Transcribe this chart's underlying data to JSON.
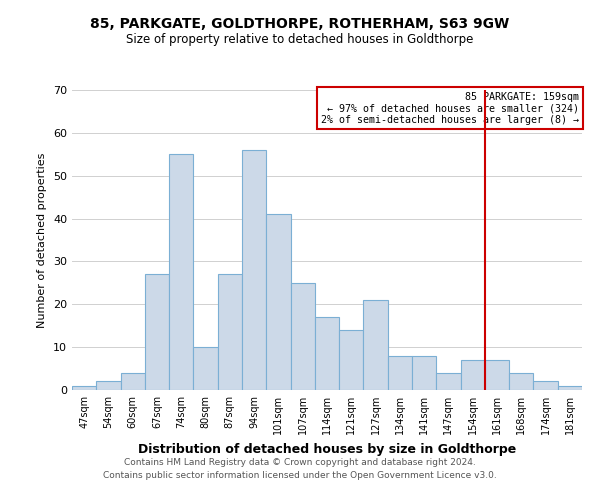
{
  "title": "85, PARKGATE, GOLDTHORPE, ROTHERHAM, S63 9GW",
  "subtitle": "Size of property relative to detached houses in Goldthorpe",
  "xlabel": "Distribution of detached houses by size in Goldthorpe",
  "ylabel": "Number of detached properties",
  "bar_labels": [
    "47sqm",
    "54sqm",
    "60sqm",
    "67sqm",
    "74sqm",
    "80sqm",
    "87sqm",
    "94sqm",
    "101sqm",
    "107sqm",
    "114sqm",
    "121sqm",
    "127sqm",
    "134sqm",
    "141sqm",
    "147sqm",
    "154sqm",
    "161sqm",
    "168sqm",
    "174sqm",
    "181sqm"
  ],
  "bar_values": [
    1,
    2,
    4,
    27,
    55,
    10,
    27,
    56,
    41,
    25,
    17,
    14,
    21,
    8,
    8,
    4,
    7,
    7,
    4,
    2,
    1
  ],
  "bar_color": "#ccd9e8",
  "bar_edge_color": "#7bafd4",
  "vline_color": "#cc0000",
  "annotation_title": "85 PARKGATE: 159sqm",
  "annotation_line1": "← 97% of detached houses are smaller (324)",
  "annotation_line2": "2% of semi-detached houses are larger (8) →",
  "annotation_box_facecolor": "#ffffff",
  "annotation_box_edgecolor": "#cc0000",
  "ylim": [
    0,
    70
  ],
  "yticks": [
    0,
    10,
    20,
    30,
    40,
    50,
    60,
    70
  ],
  "grid_color": "#d0d0d0",
  "bg_color": "#ffffff",
  "footer1": "Contains HM Land Registry data © Crown copyright and database right 2024.",
  "footer2": "Contains public sector information licensed under the Open Government Licence v3.0."
}
